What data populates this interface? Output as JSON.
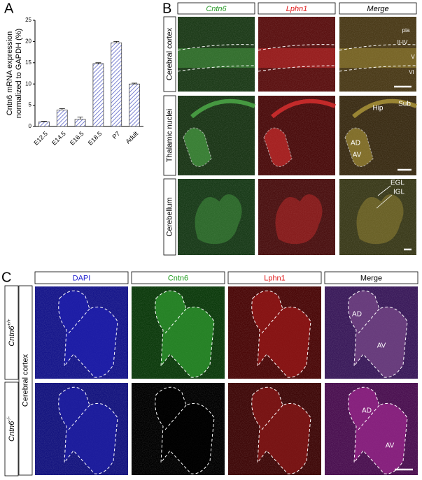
{
  "chart_data": {
    "type": "bar",
    "panel": "A",
    "categories": [
      "E12.5",
      "E14.5",
      "E16.5",
      "E18.5",
      "P7",
      "Adult"
    ],
    "values": [
      1.1,
      3.9,
      1.7,
      14.8,
      19.7,
      10.0
    ],
    "errors": [
      0.1,
      0.3,
      0.5,
      0.2,
      0.3,
      0.2
    ],
    "color": "#5a64c8",
    "ylim": [
      0,
      25
    ],
    "yticks": [
      0,
      5,
      10,
      15,
      20,
      25
    ],
    "ylabel": [
      "Cntn6 mRNA expression",
      "normalized to GAPDH (%)"
    ]
  },
  "panel_b": {
    "label": "B",
    "columns": [
      {
        "text": "Cntn6",
        "color": "#2a9a2a"
      },
      {
        "text": "Lphn1",
        "color": "#e01818"
      },
      {
        "text": "Merge",
        "color": "#000000"
      }
    ],
    "rows": [
      "Cerebral cortex",
      "Thalamic nuclei",
      "Cerebellum"
    ],
    "annotations": [
      [
        "pia",
        "II-IV",
        "V",
        "VI"
      ],
      [
        "Hip",
        "Sub",
        "AD",
        "AV"
      ],
      [
        "EGL",
        "IGL"
      ]
    ]
  },
  "panel_c": {
    "label": "C",
    "columns": [
      {
        "text": "DAPI",
        "color": "#2020d0"
      },
      {
        "text": "Cntn6",
        "color": "#1a9a1a"
      },
      {
        "text": "Lphn1",
        "color": "#e01818"
      },
      {
        "text": "Merge",
        "color": "#000000"
      }
    ],
    "region": "Cerebral cortex",
    "rows": [
      {
        "gene": "Cntn6",
        "genotype": "+/+"
      },
      {
        "gene": "Cntn6",
        "genotype": "-/-"
      }
    ],
    "annotations": [
      [
        "AD",
        "AV"
      ],
      [
        "AD",
        "AV"
      ]
    ]
  }
}
